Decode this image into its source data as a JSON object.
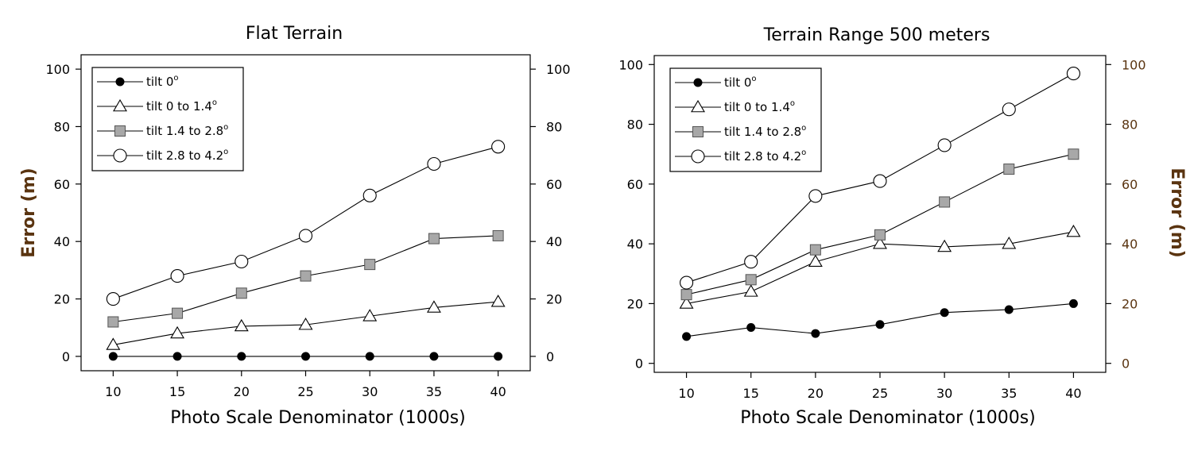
{
  "chart_data": [
    {
      "type": "line",
      "title": "Flat Terrain",
      "xlabel": "Photo Scale Denominator (1000s)",
      "ylabel": "Error (m)",
      "ylabel_side": "left",
      "x": [
        10,
        15,
        20,
        25,
        30,
        35,
        40
      ],
      "xticks": [
        "10",
        "15",
        "20",
        "25",
        "30",
        "35",
        "40"
      ],
      "yticks": [
        "0",
        "20",
        "40",
        "60",
        "80",
        "100"
      ],
      "xlim": [
        7.5,
        42.5
      ],
      "ylim": [
        -5,
        105
      ],
      "grid": false,
      "legend_position": "top-left",
      "series": [
        {
          "name": "tilt 0°",
          "legend_base": "tilt 0",
          "legend_sup": "o",
          "marker": "filled-circle",
          "values": [
            0,
            0,
            0,
            0,
            0,
            0,
            0
          ]
        },
        {
          "name": "tilt 0 to 1.4°",
          "legend_base": "tilt 0 to 1.4",
          "legend_sup": "o",
          "marker": "triangle",
          "values": [
            4,
            8,
            10.5,
            11,
            14,
            17,
            19
          ]
        },
        {
          "name": "tilt 1.4 to 2.8°",
          "legend_base": "tilt 1.4 to 2.8",
          "legend_sup": "o",
          "marker": "gray-square",
          "values": [
            12,
            15,
            22,
            28,
            32,
            41,
            42
          ]
        },
        {
          "name": "tilt 2.8 to 4.2°",
          "legend_base": "tilt 2.8 to 4.2",
          "legend_sup": "o",
          "marker": "open-circle",
          "values": [
            20,
            28,
            33,
            42,
            56,
            67,
            73
          ]
        }
      ]
    },
    {
      "type": "line",
      "title": "Terrain Range 500 meters",
      "xlabel": "Photo Scale Denominator (1000s)",
      "ylabel": "Error (m)",
      "ylabel_side": "right",
      "x": [
        10,
        15,
        20,
        25,
        30,
        35,
        40
      ],
      "xticks": [
        "10",
        "15",
        "20",
        "25",
        "30",
        "35",
        "40"
      ],
      "yticks": [
        "0",
        "20",
        "40",
        "60",
        "80",
        "100"
      ],
      "xlim": [
        7.5,
        42.5
      ],
      "ylim": [
        -3,
        103
      ],
      "grid": false,
      "legend_position": "top-left",
      "series": [
        {
          "name": "tilt 0°",
          "legend_base": "tilt 0",
          "legend_sup": "o",
          "marker": "filled-circle",
          "values": [
            9,
            12,
            10,
            13,
            17,
            18,
            20
          ]
        },
        {
          "name": "tilt 0 to 1.4°",
          "legend_base": "tilt 0 to 1.4",
          "legend_sup": "o",
          "marker": "triangle",
          "values": [
            20,
            24,
            34,
            40,
            39,
            40,
            44
          ]
        },
        {
          "name": "tilt 1.4 to 2.8°",
          "legend_base": "tilt 1.4 to 2.8",
          "legend_sup": "o",
          "marker": "gray-square",
          "values": [
            23,
            28,
            38,
            43,
            54,
            65,
            70
          ]
        },
        {
          "name": "tilt 2.8 to 4.2°",
          "legend_base": "tilt 2.8 to 4.2",
          "legend_sup": "o",
          "marker": "open-circle",
          "values": [
            27,
            34,
            56,
            61,
            73,
            85,
            97
          ]
        }
      ]
    }
  ],
  "colors": {
    "ylabel_brown": "#5a3410",
    "square_fill": "#a8a8a8",
    "line": "#000000"
  }
}
